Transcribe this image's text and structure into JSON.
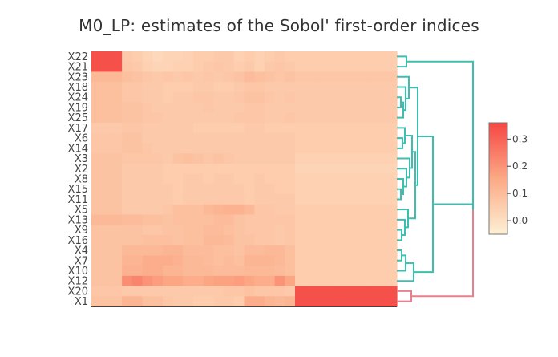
{
  "title": "M0_LP: estimates of the Sobol' first-order indices",
  "chart_data": {
    "type": "heatmap",
    "title": "M0_LP: estimates of the Sobol' first-order indices",
    "rows": [
      "X22",
      "X21",
      "X23",
      "X18",
      "X24",
      "X19",
      "X25",
      "X17",
      "X6",
      "X14",
      "X3",
      "X2",
      "X8",
      "X15",
      "X11",
      "X5",
      "X13",
      "X9",
      "X16",
      "X4",
      "X7",
      "X10",
      "X12",
      "X20",
      "X1"
    ],
    "n_columns": 30,
    "values": [
      [
        0.34,
        0.34,
        0.34,
        0.06,
        0.05,
        0.03,
        0.02,
        0.03,
        0.03,
        0.04,
        0.05,
        0.05,
        0.06,
        0.06,
        0.04,
        0.05,
        0.04,
        0.05,
        0.06,
        0.05,
        0.05,
        0.05,
        0.05,
        0.05,
        0.05,
        0.05,
        0.05,
        0.05,
        0.05,
        0.05
      ],
      [
        0.34,
        0.34,
        0.34,
        0.07,
        0.06,
        0.04,
        0.03,
        0.03,
        0.04,
        0.04,
        0.05,
        0.06,
        0.07,
        0.06,
        0.05,
        0.06,
        0.04,
        0.06,
        0.07,
        0.06,
        0.05,
        0.05,
        0.05,
        0.05,
        0.05,
        0.05,
        0.05,
        0.05,
        0.05,
        0.05
      ],
      [
        0.11,
        0.11,
        0.11,
        0.09,
        0.08,
        0.07,
        0.06,
        0.07,
        0.06,
        0.07,
        0.06,
        0.07,
        0.06,
        0.07,
        0.08,
        0.1,
        0.09,
        0.08,
        0.07,
        0.08,
        0.07,
        0.07,
        0.07,
        0.07,
        0.07,
        0.07,
        0.07,
        0.07,
        0.07,
        0.07
      ],
      [
        0.09,
        0.09,
        0.09,
        0.07,
        0.07,
        0.06,
        0.06,
        0.05,
        0.05,
        0.05,
        0.06,
        0.06,
        0.05,
        0.05,
        0.06,
        0.07,
        0.07,
        0.06,
        0.06,
        0.06,
        0.06,
        0.06,
        0.06,
        0.06,
        0.06,
        0.06,
        0.06,
        0.06,
        0.06,
        0.06
      ],
      [
        0.09,
        0.09,
        0.09,
        0.07,
        0.07,
        0.06,
        0.06,
        0.05,
        0.06,
        0.06,
        0.07,
        0.07,
        0.06,
        0.06,
        0.07,
        0.08,
        0.08,
        0.07,
        0.06,
        0.07,
        0.06,
        0.06,
        0.06,
        0.06,
        0.06,
        0.06,
        0.06,
        0.06,
        0.06,
        0.06
      ],
      [
        0.09,
        0.09,
        0.09,
        0.08,
        0.08,
        0.07,
        0.06,
        0.06,
        0.06,
        0.06,
        0.06,
        0.07,
        0.06,
        0.06,
        0.06,
        0.07,
        0.07,
        0.06,
        0.06,
        0.06,
        0.06,
        0.06,
        0.06,
        0.06,
        0.06,
        0.06,
        0.06,
        0.06,
        0.06,
        0.06
      ],
      [
        0.09,
        0.09,
        0.09,
        0.08,
        0.08,
        0.07,
        0.07,
        0.06,
        0.06,
        0.06,
        0.06,
        0.06,
        0.06,
        0.06,
        0.07,
        0.07,
        0.07,
        0.06,
        0.06,
        0.07,
        0.06,
        0.06,
        0.06,
        0.06,
        0.06,
        0.06,
        0.06,
        0.06,
        0.06,
        0.06
      ],
      [
        0.06,
        0.06,
        0.06,
        0.07,
        0.07,
        0.06,
        0.06,
        0.06,
        0.06,
        0.06,
        0.05,
        0.05,
        0.05,
        0.05,
        0.05,
        0.06,
        0.06,
        0.05,
        0.05,
        0.05,
        0.05,
        0.05,
        0.05,
        0.05,
        0.05,
        0.05,
        0.05,
        0.05,
        0.05,
        0.05
      ],
      [
        0.07,
        0.07,
        0.07,
        0.08,
        0.08,
        0.06,
        0.06,
        0.06,
        0.06,
        0.06,
        0.06,
        0.06,
        0.06,
        0.06,
        0.06,
        0.06,
        0.06,
        0.06,
        0.06,
        0.06,
        0.05,
        0.05,
        0.05,
        0.05,
        0.05,
        0.05,
        0.05,
        0.05,
        0.05,
        0.05
      ],
      [
        0.07,
        0.07,
        0.07,
        0.08,
        0.08,
        0.07,
        0.06,
        0.06,
        0.06,
        0.06,
        0.06,
        0.06,
        0.06,
        0.06,
        0.06,
        0.06,
        0.06,
        0.06,
        0.06,
        0.06,
        0.05,
        0.05,
        0.05,
        0.05,
        0.05,
        0.05,
        0.05,
        0.05,
        0.05,
        0.05
      ],
      [
        0.08,
        0.08,
        0.08,
        0.07,
        0.07,
        0.07,
        0.07,
        0.06,
        0.08,
        0.09,
        0.08,
        0.07,
        0.08,
        0.07,
        0.06,
        0.06,
        0.06,
        0.06,
        0.06,
        0.06,
        0.04,
        0.04,
        0.04,
        0.04,
        0.04,
        0.04,
        0.04,
        0.04,
        0.04,
        0.04
      ],
      [
        0.08,
        0.08,
        0.08,
        0.06,
        0.06,
        0.06,
        0.06,
        0.05,
        0.05,
        0.05,
        0.05,
        0.05,
        0.05,
        0.05,
        0.05,
        0.05,
        0.05,
        0.05,
        0.05,
        0.05,
        0.03,
        0.03,
        0.03,
        0.03,
        0.03,
        0.03,
        0.03,
        0.03,
        0.03,
        0.03
      ],
      [
        0.08,
        0.08,
        0.08,
        0.06,
        0.06,
        0.06,
        0.06,
        0.05,
        0.05,
        0.06,
        0.06,
        0.05,
        0.06,
        0.06,
        0.05,
        0.05,
        0.06,
        0.05,
        0.05,
        0.05,
        0.04,
        0.04,
        0.04,
        0.04,
        0.04,
        0.04,
        0.04,
        0.04,
        0.04,
        0.04
      ],
      [
        0.08,
        0.08,
        0.08,
        0.06,
        0.06,
        0.06,
        0.06,
        0.06,
        0.05,
        0.06,
        0.06,
        0.06,
        0.06,
        0.06,
        0.06,
        0.05,
        0.06,
        0.06,
        0.05,
        0.05,
        0.04,
        0.04,
        0.04,
        0.04,
        0.04,
        0.04,
        0.04,
        0.04,
        0.04,
        0.04
      ],
      [
        0.08,
        0.08,
        0.08,
        0.06,
        0.06,
        0.06,
        0.06,
        0.06,
        0.05,
        0.06,
        0.06,
        0.06,
        0.06,
        0.06,
        0.06,
        0.05,
        0.06,
        0.06,
        0.06,
        0.06,
        0.04,
        0.04,
        0.04,
        0.04,
        0.04,
        0.04,
        0.04,
        0.04,
        0.04,
        0.04
      ],
      [
        0.08,
        0.08,
        0.08,
        0.06,
        0.06,
        0.06,
        0.06,
        0.07,
        0.09,
        0.09,
        0.09,
        0.11,
        0.12,
        0.13,
        0.13,
        0.11,
        0.07,
        0.07,
        0.06,
        0.06,
        0.05,
        0.05,
        0.05,
        0.05,
        0.05,
        0.05,
        0.05,
        0.05,
        0.05,
        0.05
      ],
      [
        0.11,
        0.11,
        0.11,
        0.1,
        0.1,
        0.09,
        0.09,
        0.08,
        0.09,
        0.09,
        0.09,
        0.09,
        0.1,
        0.1,
        0.08,
        0.07,
        0.07,
        0.07,
        0.07,
        0.07,
        0.05,
        0.05,
        0.05,
        0.05,
        0.05,
        0.05,
        0.05,
        0.05,
        0.05,
        0.05
      ],
      [
        0.08,
        0.08,
        0.08,
        0.08,
        0.08,
        0.07,
        0.07,
        0.08,
        0.08,
        0.09,
        0.09,
        0.1,
        0.1,
        0.09,
        0.08,
        0.07,
        0.07,
        0.07,
        0.06,
        0.07,
        0.05,
        0.05,
        0.05,
        0.05,
        0.05,
        0.05,
        0.05,
        0.05,
        0.05,
        0.05
      ],
      [
        0.08,
        0.08,
        0.08,
        0.08,
        0.08,
        0.09,
        0.09,
        0.09,
        0.08,
        0.09,
        0.09,
        0.11,
        0.11,
        0.1,
        0.08,
        0.08,
        0.07,
        0.07,
        0.06,
        0.07,
        0.05,
        0.05,
        0.05,
        0.05,
        0.05,
        0.05,
        0.05,
        0.05,
        0.05,
        0.05
      ],
      [
        0.08,
        0.08,
        0.08,
        0.11,
        0.11,
        0.11,
        0.11,
        0.12,
        0.12,
        0.1,
        0.1,
        0.1,
        0.09,
        0.09,
        0.08,
        0.1,
        0.1,
        0.11,
        0.11,
        0.09,
        0.05,
        0.05,
        0.05,
        0.05,
        0.05,
        0.05,
        0.05,
        0.05,
        0.05,
        0.05
      ],
      [
        0.08,
        0.08,
        0.08,
        0.12,
        0.12,
        0.14,
        0.14,
        0.14,
        0.13,
        0.11,
        0.11,
        0.1,
        0.09,
        0.1,
        0.09,
        0.12,
        0.12,
        0.12,
        0.11,
        0.09,
        0.05,
        0.05,
        0.05,
        0.05,
        0.05,
        0.05,
        0.05,
        0.05,
        0.05,
        0.05
      ],
      [
        0.08,
        0.08,
        0.08,
        0.13,
        0.13,
        0.14,
        0.14,
        0.12,
        0.12,
        0.11,
        0.11,
        0.11,
        0.1,
        0.1,
        0.1,
        0.11,
        0.11,
        0.11,
        0.1,
        0.09,
        0.05,
        0.05,
        0.05,
        0.05,
        0.05,
        0.05,
        0.05,
        0.05,
        0.05,
        0.05
      ],
      [
        0.08,
        0.08,
        0.08,
        0.21,
        0.23,
        0.2,
        0.18,
        0.16,
        0.16,
        0.14,
        0.14,
        0.16,
        0.17,
        0.17,
        0.18,
        0.16,
        0.14,
        0.14,
        0.2,
        0.16,
        0.05,
        0.05,
        0.05,
        0.05,
        0.05,
        0.05,
        0.05,
        0.05,
        0.05,
        0.05
      ],
      [
        0.07,
        0.07,
        0.07,
        0.06,
        0.06,
        0.06,
        0.06,
        0.06,
        0.06,
        0.06,
        0.06,
        0.06,
        0.06,
        0.07,
        0.07,
        0.08,
        0.07,
        0.07,
        0.07,
        0.06,
        0.34,
        0.34,
        0.34,
        0.34,
        0.34,
        0.34,
        0.34,
        0.34,
        0.34,
        0.34
      ],
      [
        0.08,
        0.08,
        0.08,
        0.12,
        0.12,
        0.09,
        0.09,
        0.07,
        0.06,
        0.06,
        0.05,
        0.05,
        0.06,
        0.06,
        0.05,
        0.14,
        0.14,
        0.12,
        0.11,
        0.12,
        0.34,
        0.34,
        0.34,
        0.34,
        0.34,
        0.34,
        0.34,
        0.34,
        0.34,
        0.34
      ]
    ],
    "colorscale": {
      "min": -0.05,
      "max": 0.36,
      "low_color": "#fdf0d5",
      "mid_color": "#fca986",
      "high_color": "#f54644",
      "ticks": [
        0.0,
        0.1,
        0.2,
        0.3
      ],
      "tick_labels": [
        "0.0",
        "0.1",
        "0.2",
        "0.3"
      ]
    },
    "dendrogram": {
      "main_color": "#3dbfb0",
      "outlier_color": "#e8808e",
      "outlier_rows": [
        "X20",
        "X1"
      ]
    }
  }
}
